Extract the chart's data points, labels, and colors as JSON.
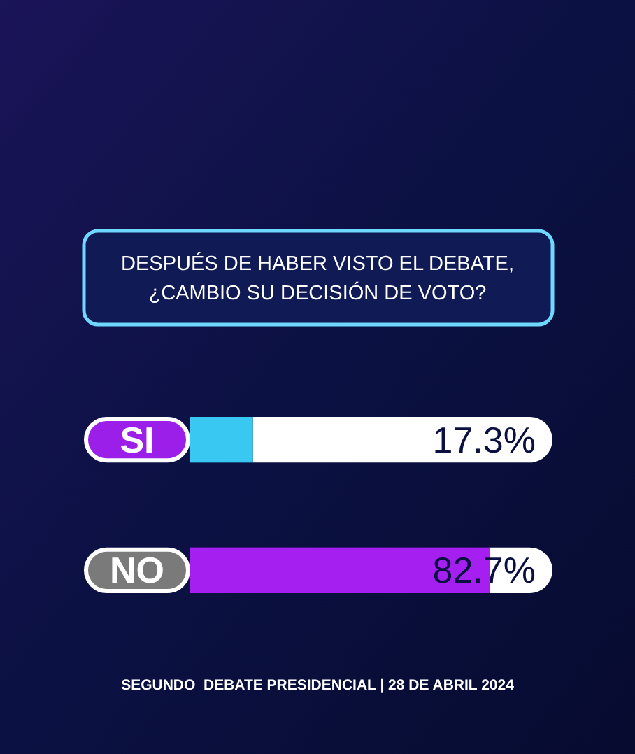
{
  "chart_data": {
    "type": "bar",
    "orientation": "horizontal",
    "title": "DESPUÉS DE HABER VISTO EL DEBATE, ¿CAMBIO SU DECISIÓN DE VOTO?",
    "categories": [
      "SI",
      "NO"
    ],
    "values": [
      17.3,
      82.7
    ],
    "colors": [
      "#38c8f2",
      "#a51ff0"
    ],
    "value_labels": [
      "17.3%",
      "82.7%"
    ],
    "xlim": [
      0,
      100
    ],
    "annotations": [
      "SEGUNDO  DEBATE PRESIDENCIAL | 28 DE ABRIL 2024"
    ]
  }
}
